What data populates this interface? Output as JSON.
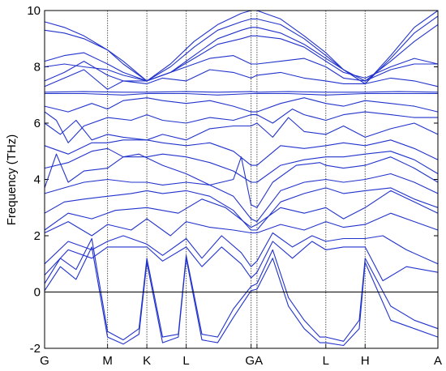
{
  "chart_data": {
    "type": "line",
    "title": "",
    "xlabel": "",
    "ylabel": "Frequency (THz)",
    "ylim": [
      -2,
      10
    ],
    "yticks": [
      -2,
      0,
      2,
      4,
      6,
      8,
      10
    ],
    "ytick_labels": [
      "-2",
      "0",
      "2",
      "4",
      "6",
      "8",
      "10"
    ],
    "xlim": [
      0,
      1
    ],
    "x_high_symmetry": [
      {
        "label": "G",
        "x": 0.0
      },
      {
        "label": "M",
        "x": 0.16
      },
      {
        "label": "K",
        "x": 0.26
      },
      {
        "label": "L",
        "x": 0.36
      },
      {
        "label": "G",
        "x": 0.525
      },
      {
        "label": "A",
        "x": 0.54
      },
      {
        "label": "L",
        "x": 0.715
      },
      {
        "label": "H",
        "x": 0.815
      },
      {
        "label": "A",
        "x": 1.0
      }
    ],
    "tick_label_text": [
      "G",
      "M",
      "K",
      "L",
      "GA",
      "L",
      "H",
      "A"
    ],
    "grid": false,
    "zero_line": true,
    "colors": {
      "band": "#2233cc",
      "axis": "#000000",
      "vline": "#555555"
    },
    "series": [
      {
        "x": [
          0,
          0.04,
          0.08,
          0.12,
          0.16,
          0.2,
          0.24,
          0.26,
          0.3,
          0.34,
          0.36,
          0.4,
          0.44,
          0.48,
          0.525,
          0.54,
          0.58,
          0.62,
          0.66,
          0.7,
          0.715,
          0.76,
          0.8,
          0.815,
          0.88,
          0.94,
          1.0
        ],
        "y": [
          0.05,
          0.9,
          0.45,
          1.6,
          -1.6,
          -1.85,
          -1.5,
          1.05,
          -1.8,
          -1.6,
          1.2,
          -1.7,
          -1.8,
          -0.9,
          0.05,
          0.1,
          1.2,
          -0.5,
          -1.3,
          -1.8,
          -1.8,
          -1.9,
          -1.3,
          1.05,
          -1.0,
          -1.3,
          -1.6
        ]
      },
      {
        "x": [
          0,
          0.04,
          0.08,
          0.12,
          0.16,
          0.2,
          0.24,
          0.26,
          0.3,
          0.34,
          0.36,
          0.4,
          0.44,
          0.48,
          0.525,
          0.54,
          0.58,
          0.62,
          0.66,
          0.7,
          0.715,
          0.76,
          0.8,
          0.815,
          0.88,
          0.94,
          1.0
        ],
        "y": [
          0.3,
          1.2,
          0.8,
          1.9,
          -1.4,
          -1.7,
          -1.3,
          1.2,
          -1.6,
          -1.5,
          1.3,
          -1.5,
          -1.6,
          -0.6,
          0.2,
          0.3,
          1.5,
          -0.2,
          -1.0,
          -1.6,
          -1.6,
          -1.75,
          -1.0,
          1.2,
          -0.5,
          -1.0,
          -1.3
        ]
      },
      {
        "x": [
          0,
          0.06,
          0.12,
          0.16,
          0.2,
          0.26,
          0.3,
          0.36,
          0.4,
          0.45,
          0.5,
          0.525,
          0.54,
          0.58,
          0.63,
          0.68,
          0.715,
          0.76,
          0.815,
          0.86,
          0.92,
          1.0
        ],
        "y": [
          0.6,
          1.5,
          1.2,
          1.6,
          1.6,
          1.6,
          1.1,
          1.6,
          0.9,
          1.6,
          1.0,
          0.5,
          0.7,
          1.8,
          1.2,
          1.8,
          1.5,
          1.6,
          1.6,
          0.4,
          0.9,
          0.7
        ]
      },
      {
        "x": [
          0,
          0.06,
          0.12,
          0.16,
          0.2,
          0.26,
          0.3,
          0.36,
          0.4,
          0.45,
          0.5,
          0.525,
          0.54,
          0.58,
          0.63,
          0.68,
          0.715,
          0.76,
          0.815,
          0.86,
          0.92,
          1.0
        ],
        "y": [
          1.0,
          1.8,
          1.5,
          1.8,
          2.0,
          1.7,
          1.3,
          1.9,
          1.2,
          2.0,
          1.4,
          0.9,
          1.1,
          2.1,
          1.6,
          2.0,
          1.8,
          1.9,
          1.9,
          2.0,
          1.5,
          1.0
        ]
      },
      {
        "x": [
          0,
          0.06,
          0.12,
          0.16,
          0.22,
          0.26,
          0.32,
          0.36,
          0.42,
          0.48,
          0.525,
          0.54,
          0.6,
          0.66,
          0.715,
          0.76,
          0.815,
          0.88,
          0.94,
          1.0
        ],
        "y": [
          2.1,
          2.5,
          2.0,
          2.4,
          2.2,
          2.6,
          2.0,
          2.5,
          2.3,
          2.2,
          2.1,
          2.1,
          2.4,
          2.2,
          2.5,
          2.3,
          2.4,
          2.8,
          2.5,
          2.2
        ]
      },
      {
        "x": [
          0,
          0.06,
          0.12,
          0.18,
          0.26,
          0.34,
          0.4,
          0.46,
          0.525,
          0.54,
          0.6,
          0.66,
          0.715,
          0.76,
          0.815,
          0.88,
          0.94,
          1.0
        ],
        "y": [
          2.2,
          2.8,
          2.6,
          2.9,
          3.0,
          2.8,
          3.3,
          3.0,
          2.3,
          2.4,
          3.0,
          2.8,
          3.0,
          2.6,
          3.0,
          3.6,
          3.2,
          2.8
        ]
      },
      {
        "x": [
          0,
          0.05,
          0.1,
          0.16,
          0.22,
          0.26,
          0.3,
          0.36,
          0.42,
          0.48,
          0.525,
          0.54,
          0.6,
          0.66,
          0.715,
          0.76,
          0.815,
          0.88,
          0.94,
          1.0
        ],
        "y": [
          2.8,
          3.2,
          3.3,
          3.4,
          3.5,
          3.6,
          3.5,
          3.6,
          3.4,
          2.9,
          2.2,
          2.2,
          3.2,
          3.5,
          3.7,
          3.5,
          3.6,
          3.7,
          3.3,
          3.0
        ]
      },
      {
        "x": [
          0,
          0.05,
          0.1,
          0.16,
          0.22,
          0.26,
          0.3,
          0.36,
          0.42,
          0.48,
          0.525,
          0.54,
          0.6,
          0.66,
          0.715,
          0.76,
          0.815,
          0.88,
          0.94,
          1.0
        ],
        "y": [
          3.5,
          3.7,
          3.9,
          4.0,
          3.9,
          3.9,
          3.8,
          3.9,
          3.8,
          3.4,
          2.6,
          2.5,
          3.6,
          3.9,
          4.0,
          3.9,
          4.0,
          4.2,
          3.9,
          3.5
        ]
      },
      {
        "x": [
          0,
          0.03,
          0.06,
          0.1,
          0.16,
          0.2,
          0.24,
          0.3,
          0.36,
          0.42,
          0.48,
          0.5,
          0.525,
          0.54,
          0.58,
          0.64,
          0.7,
          0.715,
          0.76,
          0.815,
          0.88,
          0.94,
          1.0
        ],
        "y": [
          3.7,
          4.9,
          3.9,
          4.3,
          4.4,
          4.8,
          4.9,
          4.5,
          4.2,
          3.8,
          4.0,
          4.8,
          3.1,
          3.0,
          3.9,
          4.5,
          4.6,
          4.5,
          4.4,
          4.5,
          4.8,
          4.4,
          3.9
        ]
      },
      {
        "x": [
          0,
          0.06,
          0.12,
          0.16,
          0.2,
          0.26,
          0.3,
          0.36,
          0.42,
          0.48,
          0.525,
          0.54,
          0.6,
          0.66,
          0.715,
          0.76,
          0.815,
          0.88,
          0.94,
          1.0
        ],
        "y": [
          4.4,
          4.6,
          5.0,
          5.1,
          4.8,
          4.8,
          4.9,
          4.8,
          4.6,
          4.3,
          3.9,
          3.9,
          4.5,
          4.7,
          4.8,
          4.8,
          4.9,
          5.0,
          4.7,
          4.2
        ]
      },
      {
        "x": [
          0,
          0.06,
          0.12,
          0.16,
          0.2,
          0.26,
          0.3,
          0.36,
          0.42,
          0.48,
          0.525,
          0.54,
          0.6,
          0.66,
          0.715,
          0.76,
          0.815,
          0.88,
          0.94,
          1.0
        ],
        "y": [
          5.2,
          4.9,
          5.3,
          5.3,
          5.4,
          5.4,
          5.3,
          5.2,
          5.3,
          5.0,
          4.5,
          4.5,
          5.2,
          5.1,
          5.2,
          5.3,
          5.2,
          5.4,
          5.1,
          4.7
        ]
      },
      {
        "x": [
          0,
          0.04,
          0.08,
          0.12,
          0.16,
          0.2,
          0.26,
          0.3,
          0.36,
          0.42,
          0.48,
          0.525,
          0.54,
          0.58,
          0.62,
          0.66,
          0.715,
          0.76,
          0.815,
          0.88,
          0.94,
          1.0
        ],
        "y": [
          6.0,
          5.6,
          6.1,
          5.4,
          5.6,
          5.5,
          5.4,
          5.6,
          5.4,
          5.8,
          5.9,
          5.9,
          6.0,
          5.5,
          6.2,
          5.7,
          5.6,
          5.9,
          5.5,
          5.8,
          6.0,
          5.6
        ]
      },
      {
        "x": [
          0,
          0.03,
          0.06,
          0.1,
          0.16,
          0.22,
          0.26,
          0.3,
          0.36,
          0.42,
          0.48,
          0.525,
          0.54,
          0.58,
          0.63,
          0.66,
          0.715,
          0.76,
          0.815,
          0.88,
          0.94,
          1.0
        ],
        "y": [
          6.4,
          6.1,
          5.3,
          5.9,
          6.2,
          6.1,
          6.3,
          6.1,
          6.0,
          6.2,
          6.1,
          6.3,
          6.3,
          6.0,
          6.5,
          6.3,
          6.1,
          6.3,
          6.4,
          6.3,
          6.2,
          6.2
        ]
      },
      {
        "x": [
          0,
          0.06,
          0.12,
          0.16,
          0.2,
          0.26,
          0.3,
          0.36,
          0.42,
          0.48,
          0.525,
          0.54,
          0.6,
          0.66,
          0.715,
          0.76,
          0.815,
          0.88,
          0.94,
          1.0
        ],
        "y": [
          6.6,
          6.4,
          6.7,
          6.5,
          6.8,
          6.9,
          6.8,
          6.7,
          6.8,
          6.6,
          6.4,
          6.4,
          6.7,
          6.9,
          6.7,
          6.6,
          6.8,
          6.7,
          6.6,
          6.4
        ]
      },
      {
        "x": [
          0,
          0.1,
          0.2,
          0.26,
          0.36,
          0.44,
          0.525,
          0.54,
          0.62,
          0.715,
          0.815,
          0.9,
          1.0
        ],
        "y": [
          7.05,
          7.05,
          7.0,
          7.05,
          7.05,
          7.0,
          7.05,
          7.05,
          7.05,
          7.0,
          7.05,
          7.05,
          7.05
        ]
      },
      {
        "x": [
          0,
          0.1,
          0.2,
          0.26,
          0.36,
          0.44,
          0.525,
          0.54,
          0.62,
          0.715,
          0.815,
          0.9,
          1.0
        ],
        "y": [
          7.1,
          7.12,
          7.1,
          7.1,
          7.12,
          7.1,
          7.12,
          7.1,
          7.12,
          7.1,
          7.1,
          7.12,
          7.1
        ]
      },
      {
        "x": [
          0,
          0.05,
          0.1,
          0.16,
          0.2,
          0.26,
          0.3,
          0.36,
          0.42,
          0.48,
          0.525,
          0.54,
          0.6,
          0.66,
          0.715,
          0.76,
          0.815,
          0.88,
          0.94,
          1.0
        ],
        "y": [
          7.3,
          7.6,
          7.9,
          7.2,
          7.5,
          7.4,
          7.6,
          7.5,
          7.9,
          7.8,
          7.6,
          7.7,
          7.8,
          7.6,
          7.5,
          7.4,
          7.4,
          7.6,
          7.5,
          7.3
        ]
      },
      {
        "x": [
          0,
          0.05,
          0.1,
          0.16,
          0.2,
          0.26,
          0.3,
          0.36,
          0.42,
          0.48,
          0.525,
          0.54,
          0.6,
          0.66,
          0.715,
          0.76,
          0.815,
          0.88,
          0.94,
          1.0
        ],
        "y": [
          7.5,
          7.8,
          8.2,
          7.7,
          7.5,
          7.5,
          7.7,
          8.0,
          8.3,
          8.4,
          8.1,
          8.1,
          8.2,
          8.3,
          8.0,
          7.6,
          7.5,
          7.9,
          8.1,
          8.1
        ]
      },
      {
        "x": [
          0,
          0.05,
          0.1,
          0.16,
          0.2,
          0.26,
          0.32,
          0.38,
          0.44,
          0.5,
          0.525,
          0.54,
          0.6,
          0.66,
          0.715,
          0.76,
          0.815,
          0.88,
          0.94,
          1.0
        ],
        "y": [
          8.0,
          8.1,
          8.0,
          7.9,
          7.7,
          7.5,
          7.8,
          8.3,
          8.8,
          9.0,
          9.1,
          9.1,
          9.0,
          8.7,
          8.2,
          7.8,
          7.6,
          8.0,
          8.3,
          8.1
        ]
      },
      {
        "x": [
          0,
          0.05,
          0.1,
          0.16,
          0.2,
          0.26,
          0.32,
          0.38,
          0.44,
          0.5,
          0.525,
          0.54,
          0.6,
          0.66,
          0.715,
          0.76,
          0.815,
          0.88,
          0.94,
          1.0
        ],
        "y": [
          8.2,
          8.4,
          8.5,
          8.1,
          7.8,
          7.5,
          7.8,
          8.4,
          9.0,
          9.3,
          9.4,
          9.4,
          9.2,
          8.8,
          8.3,
          7.9,
          7.5,
          8.2,
          8.9,
          9.5
        ]
      },
      {
        "x": [
          0,
          0.05,
          0.1,
          0.16,
          0.2,
          0.26,
          0.32,
          0.38,
          0.44,
          0.5,
          0.525,
          0.54,
          0.6,
          0.66,
          0.715,
          0.76,
          0.815,
          0.88,
          0.94,
          1.0
        ],
        "y": [
          9.3,
          9.2,
          9.0,
          8.6,
          8.1,
          7.5,
          8.0,
          8.7,
          9.3,
          9.6,
          9.7,
          9.7,
          9.5,
          9.0,
          8.4,
          7.9,
          7.4,
          8.3,
          9.2,
          9.8
        ]
      },
      {
        "x": [
          0,
          0.05,
          0.1,
          0.16,
          0.2,
          0.26,
          0.32,
          0.38,
          0.44,
          0.5,
          0.525,
          0.54,
          0.6,
          0.66,
          0.715,
          0.76,
          0.815,
          0.88,
          0.94,
          1.0
        ],
        "y": [
          9.6,
          9.4,
          9.1,
          8.6,
          8.2,
          7.5,
          8.1,
          8.9,
          9.5,
          9.9,
          10.0,
          10.0,
          9.7,
          9.1,
          8.5,
          7.9,
          7.4,
          8.4,
          9.4,
          10.0
        ]
      }
    ]
  }
}
